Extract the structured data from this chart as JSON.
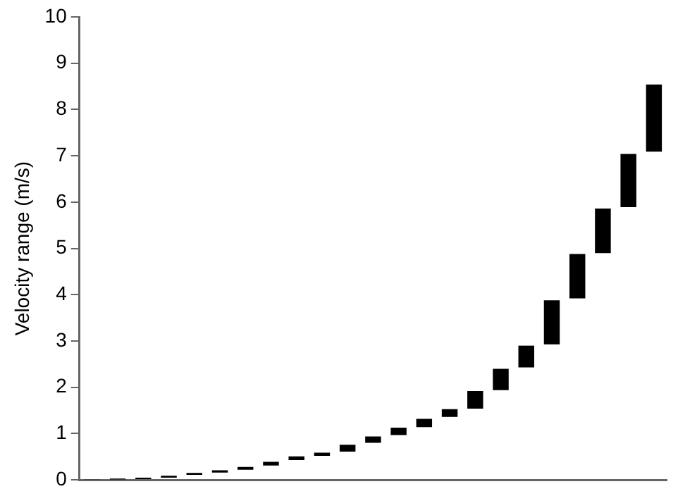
{
  "chart_data": {
    "type": "bar",
    "ylabel": "Velocity range (m/s)",
    "categories": [
      null,
      null,
      null,
      null,
      null,
      null,
      null,
      null,
      null,
      null,
      null,
      null,
      null,
      null,
      null,
      null,
      null,
      null,
      null,
      null,
      null,
      null,
      null
    ],
    "base": [
      0,
      0.01,
      0.02,
      0.05,
      0.11,
      0.16,
      0.22,
      0.31,
      0.43,
      0.52,
      0.61,
      0.8,
      0.97,
      1.14,
      1.36,
      1.54,
      1.94,
      2.43,
      2.93,
      3.92,
      4.9,
      5.89,
      7.09
    ],
    "values": [
      0.01,
      0.02,
      0.03,
      0.04,
      0.04,
      0.05,
      0.06,
      0.08,
      0.08,
      0.07,
      0.15,
      0.14,
      0.16,
      0.18,
      0.17,
      0.38,
      0.46,
      0.47,
      0.95,
      0.96,
      0.96,
      1.15,
      1.45
    ],
    "color": "#000000",
    "ylim": [
      0,
      10
    ],
    "yticks": [
      0,
      1,
      2,
      3,
      4,
      5,
      6,
      7,
      8,
      9,
      10
    ],
    "tick_labels": "y",
    "grid": false,
    "legend": false
  }
}
